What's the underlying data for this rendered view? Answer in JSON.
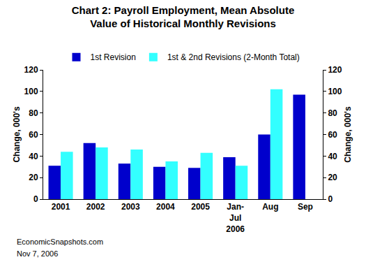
{
  "chart_data": {
    "type": "bar",
    "title": "Chart 2: Payroll Employment, Mean Absolute\nValue of Historical Monthly Revisions",
    "y_label": "Change, 000's",
    "y2_label": "Change, 000's",
    "categories": [
      "2001",
      "2002",
      "2003",
      "2004",
      "2005",
      "Jan-\nJul\n2006",
      "Aug",
      "Sep"
    ],
    "series": [
      {
        "name": "1st Revision",
        "color": "#0000cc",
        "values": [
          31,
          52,
          33,
          30,
          29,
          39,
          60,
          97
        ]
      },
      {
        "name": "1st & 2nd Revisions (2-Month Total)",
        "color": "#33ffff",
        "values": [
          44,
          48,
          46,
          35,
          43,
          31,
          102,
          null
        ]
      }
    ],
    "ylim": [
      0,
      120
    ],
    "yticks": [
      0,
      20,
      40,
      60,
      80,
      100,
      120
    ],
    "y2lim": [
      0,
      120
    ],
    "y2ticks": [
      0,
      20,
      40,
      60,
      80,
      100,
      120
    ],
    "grid": false,
    "legend": "top",
    "annotations": [
      "EconomicSnapshots.com",
      "Nov 7, 2006"
    ]
  }
}
